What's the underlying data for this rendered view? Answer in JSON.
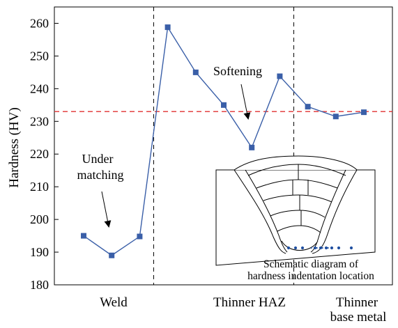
{
  "chart_data": {
    "type": "line",
    "ylabel": "Hardness (HV)",
    "xlabel": "",
    "ylim": [
      180,
      265
    ],
    "yticks": [
      180,
      190,
      200,
      210,
      220,
      230,
      240,
      250,
      260
    ],
    "grid": false,
    "legend": "none",
    "series": [
      {
        "color": "#3a5fa8",
        "marker": "square",
        "points": [
          {
            "pos": 1,
            "y": 195
          },
          {
            "pos": 2,
            "y": 189
          },
          {
            "pos": 3,
            "y": 194.8
          },
          {
            "pos": 4,
            "y": 258.8
          },
          {
            "pos": 5,
            "y": 245
          },
          {
            "pos": 6,
            "y": 235
          },
          {
            "pos": 7,
            "y": 222
          },
          {
            "pos": 8,
            "y": 243.8
          },
          {
            "pos": 9,
            "y": 234.5
          },
          {
            "pos": 10,
            "y": 231.5
          },
          {
            "pos": 11,
            "y": 232.8
          }
        ]
      }
    ],
    "reference_line": {
      "y": 233,
      "style": "dashed",
      "color": "#e03030"
    },
    "region_dividers": [
      3.5,
      8.5
    ],
    "regions": [
      {
        "label": "Weld"
      },
      {
        "label": "Thinner HAZ"
      },
      {
        "label_line1": "Thinner",
        "label_line2": "base metal"
      }
    ],
    "annotations": {
      "under_matching_line1": "Under",
      "under_matching_line2": "matching",
      "softening": "Softening"
    },
    "inset": {
      "caption_line1": "Schematic diagram of",
      "caption_line2": "hardness indentation location",
      "dot_color": "#1f4fa0"
    }
  }
}
